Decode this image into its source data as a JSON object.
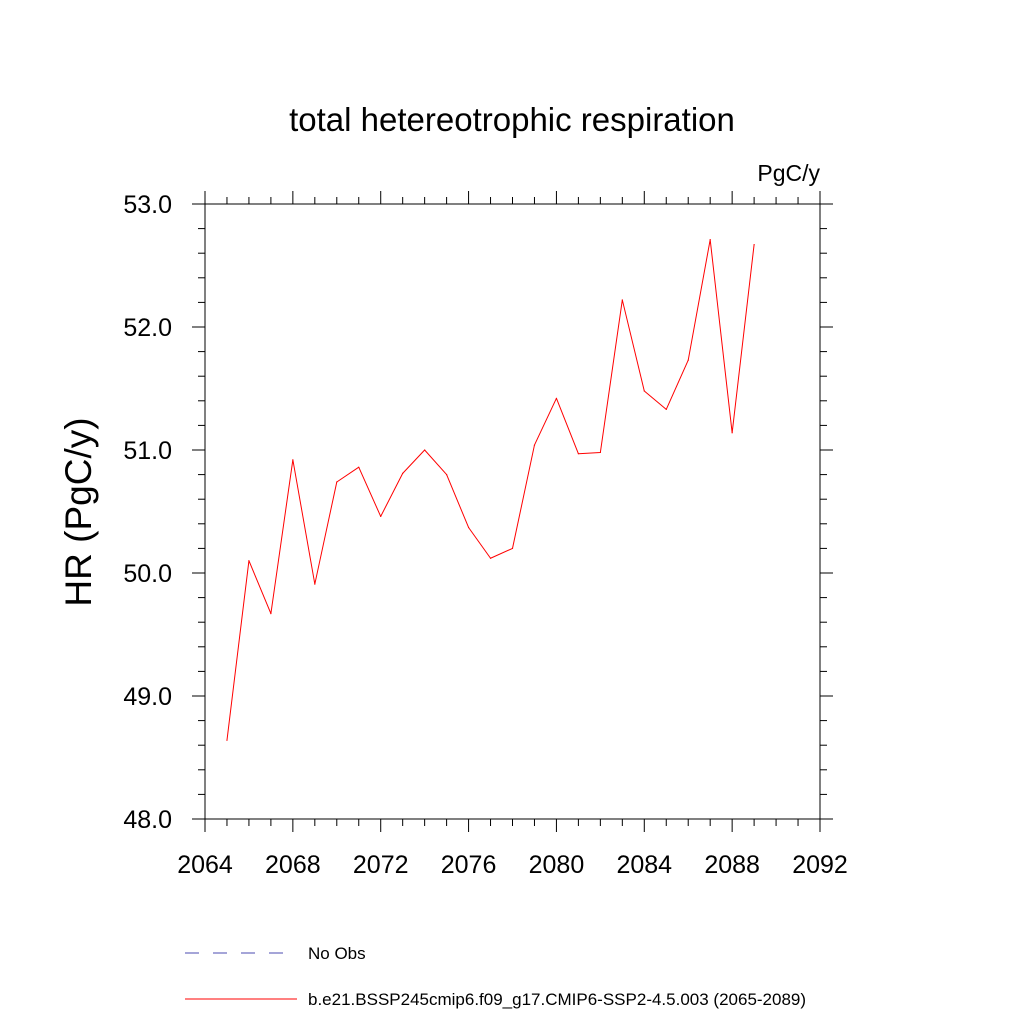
{
  "chart_data": {
    "type": "line",
    "title": "total hetereotrophic respiration",
    "units_label": "PgC/y",
    "xlabel": "",
    "ylabel": "HR  (PgC/y)",
    "xlim": [
      2064,
      2092
    ],
    "ylim": [
      48.0,
      53.0
    ],
    "xticks": [
      2064,
      2068,
      2072,
      2076,
      2080,
      2084,
      2088,
      2092
    ],
    "yticks": [
      48.0,
      49.0,
      50.0,
      51.0,
      52.0,
      53.0
    ],
    "x_minor_step": 1,
    "y_minor_step": 0.2,
    "grid": false,
    "legend_position": "bottom",
    "series": [
      {
        "name": "b.e21.BSSP245cmip6.f09_g17.CMIP6-SSP2-4.5.003 (2065-2089)",
        "color": "#ff0000",
        "style": "solid",
        "x": [
          2065,
          2066,
          2067,
          2068,
          2069,
          2070,
          2071,
          2072,
          2073,
          2074,
          2075,
          2076,
          2077,
          2078,
          2079,
          2080,
          2081,
          2082,
          2083,
          2084,
          2085,
          2086,
          2087,
          2088,
          2089
        ],
        "y": [
          48.64,
          50.1,
          49.67,
          50.92,
          49.91,
          50.74,
          50.86,
          50.46,
          50.81,
          51.0,
          50.8,
          50.37,
          50.12,
          50.2,
          51.04,
          51.42,
          50.97,
          50.98,
          52.22,
          51.48,
          51.33,
          51.73,
          52.71,
          51.14,
          52.67
        ]
      }
    ],
    "legend": [
      {
        "label": "No Obs",
        "color": "#4b4bb0",
        "style": "dashed"
      },
      {
        "label": "b.e21.BSSP245cmip6.f09_g17.CMIP6-SSP2-4.5.003 (2065-2089)",
        "color": "#ff0000",
        "style": "solid"
      }
    ]
  }
}
